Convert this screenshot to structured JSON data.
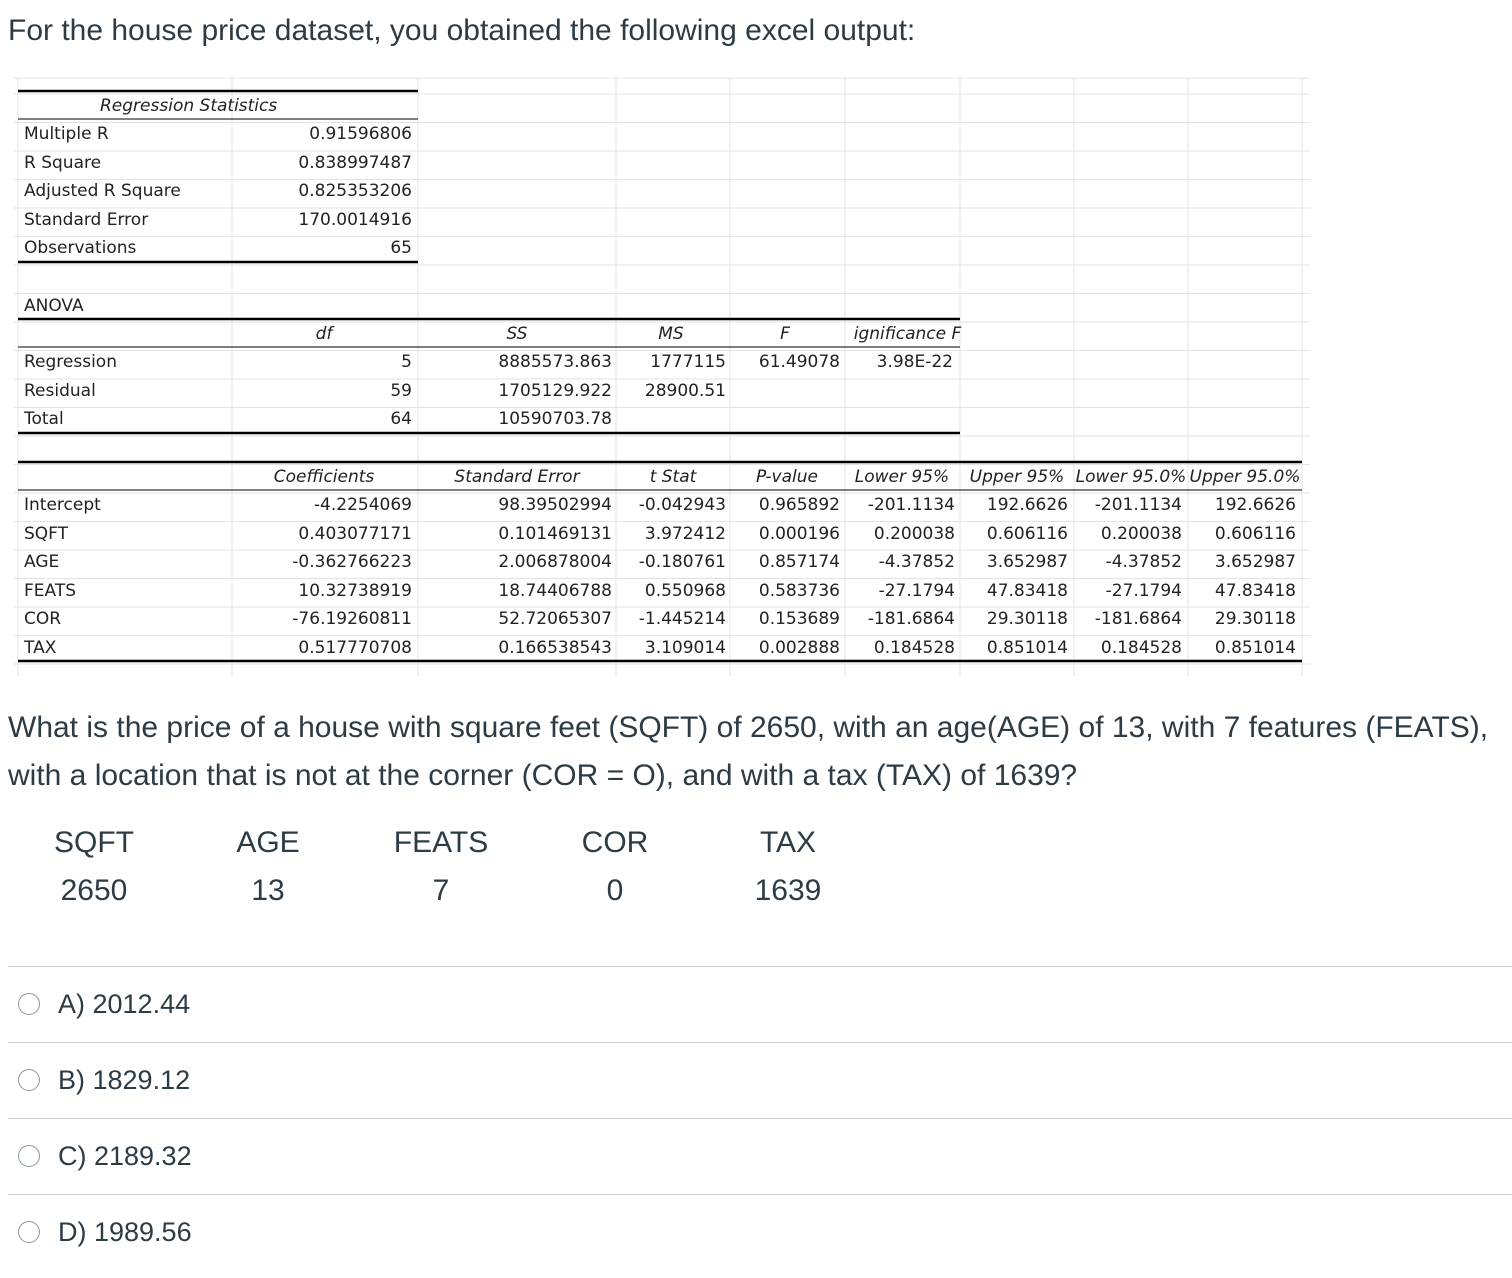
{
  "intro": "For the house price dataset, you obtained the following excel output:",
  "regression_statistics": {
    "title": "Regression Statistics",
    "rows": [
      {
        "label": "Multiple R",
        "value": "0.91596806"
      },
      {
        "label": "R Square",
        "value": "0.838997487"
      },
      {
        "label": "Adjusted R Square",
        "value": "0.825353206"
      },
      {
        "label": "Standard Error",
        "value": "170.0014916"
      },
      {
        "label": "Observations",
        "value": "65"
      }
    ]
  },
  "anova": {
    "title": "ANOVA",
    "headers": [
      "df",
      "SS",
      "MS",
      "F",
      "ignificance F"
    ],
    "rows": [
      {
        "label": "Regression",
        "df": "5",
        "ss": "8885573.863",
        "ms": "1777115",
        "f": "61.49078",
        "sig": "3.98E-22"
      },
      {
        "label": "Residual",
        "df": "59",
        "ss": "1705129.922",
        "ms": "28900.51",
        "f": "",
        "sig": ""
      },
      {
        "label": "Total",
        "df": "64",
        "ss": "10590703.78",
        "ms": "",
        "f": "",
        "sig": ""
      }
    ]
  },
  "coefficients": {
    "headers": [
      "Coefficients",
      "Standard Error",
      "t Stat",
      "P-value",
      "Lower 95%",
      "Upper 95%",
      "Lower 95.0%",
      "Upper 95.0%"
    ],
    "rows": [
      {
        "label": "Intercept",
        "cells": [
          "-4.2254069",
          "98.39502994",
          "-0.042943",
          "0.965892",
          "-201.1134",
          "192.6626",
          "-201.1134",
          "192.6626"
        ]
      },
      {
        "label": "SQFT",
        "cells": [
          "0.403077171",
          "0.101469131",
          "3.972412",
          "0.000196",
          "0.200038",
          "0.606116",
          "0.200038",
          "0.606116"
        ]
      },
      {
        "label": "AGE",
        "cells": [
          "-0.362766223",
          "2.006878004",
          "-0.180761",
          "0.857174",
          "-4.37852",
          "3.652987",
          "-4.37852",
          "3.652987"
        ]
      },
      {
        "label": "FEATS",
        "cells": [
          "10.32738919",
          "18.74406788",
          "0.550968",
          "0.583736",
          "-27.1794",
          "47.83418",
          "-27.1794",
          "47.83418"
        ]
      },
      {
        "label": "COR",
        "cells": [
          "-76.19260811",
          "52.72065307",
          "-1.445214",
          "0.153689",
          "-181.6864",
          "29.30118",
          "-181.6864",
          "29.30118"
        ]
      },
      {
        "label": "TAX",
        "cells": [
          "0.517770708",
          "0.166538543",
          "3.109014",
          "0.002888",
          "0.184528",
          "0.851014",
          "0.184528",
          "0.851014"
        ]
      }
    ]
  },
  "question": "What is the price of a house with square feet (SQFT) of 2650, with an age(AGE) of 13, with 7 features (FEATS), with a location that is not at the corner (COR = O), and with a tax (TAX) of 1639?",
  "values_table": {
    "headers": [
      "SQFT",
      "AGE",
      "FEATS",
      "COR",
      "TAX"
    ],
    "values": [
      "2650",
      "13",
      "7",
      "0",
      "1639"
    ]
  },
  "options": [
    {
      "label": "A) 2012.44"
    },
    {
      "label": "B) 1829.12"
    },
    {
      "label": "C) 2189.32"
    },
    {
      "label": "D) 1989.56"
    }
  ]
}
